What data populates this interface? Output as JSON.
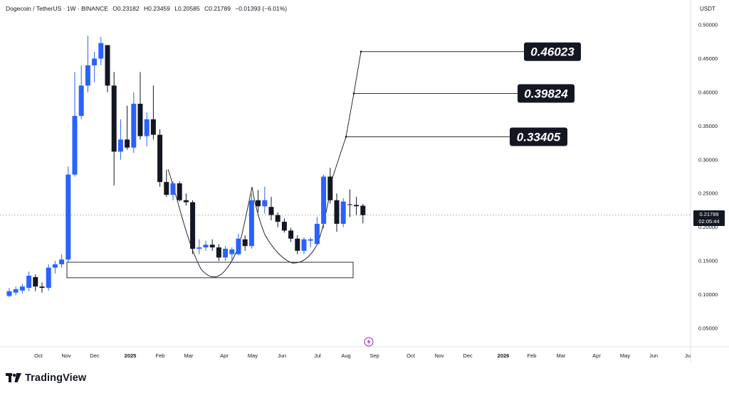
{
  "header": {
    "symbol": "Dogecoin / TetherUS · 1W · BINANCE",
    "open": "O0.23182",
    "high": "H0.23459",
    "low": "L0.20585",
    "close": "C0.21789",
    "change": "−0.01393 (−6.01%)"
  },
  "currency": "USDT",
  "price_tag": {
    "price": "0.21789",
    "countdown": "02:05:44"
  },
  "brand": "TradingView",
  "colors": {
    "up": "#2962ff",
    "down": "#131722",
    "grid_dotted": "#9598a1",
    "text": "#131722",
    "lightning": "#9c27b0"
  },
  "chart_data": {
    "type": "candlestick",
    "x_labels": [
      "Oct",
      "Nov",
      "Dec",
      "2025",
      "Feb",
      "Mar",
      "Apr",
      "May",
      "Jun",
      "Jul",
      "Aug",
      "Sep",
      "Oct",
      "Nov",
      "Dec",
      "2026",
      "Feb",
      "Mar",
      "Apr",
      "May",
      "Jun",
      "Ju"
    ],
    "y_ticks": [
      "0.50000",
      "0.45000",
      "0.40000",
      "0.35000",
      "0.30000",
      "0.25000",
      "0.20000",
      "0.15000",
      "0.10000",
      "0.05000"
    ],
    "ylim": [
      0.02,
      0.52
    ],
    "candles": [
      {
        "o": 0.098,
        "h": 0.11,
        "l": 0.096,
        "c": 0.105
      },
      {
        "o": 0.103,
        "h": 0.112,
        "l": 0.099,
        "c": 0.108
      },
      {
        "o": 0.106,
        "h": 0.116,
        "l": 0.102,
        "c": 0.112
      },
      {
        "o": 0.11,
        "h": 0.134,
        "l": 0.105,
        "c": 0.128
      },
      {
        "o": 0.126,
        "h": 0.13,
        "l": 0.105,
        "c": 0.112
      },
      {
        "o": 0.112,
        "h": 0.118,
        "l": 0.103,
        "c": 0.11
      },
      {
        "o": 0.11,
        "h": 0.145,
        "l": 0.106,
        "c": 0.14
      },
      {
        "o": 0.14,
        "h": 0.15,
        "l": 0.131,
        "c": 0.145
      },
      {
        "o": 0.145,
        "h": 0.16,
        "l": 0.14,
        "c": 0.152
      },
      {
        "o": 0.152,
        "h": 0.29,
        "l": 0.148,
        "c": 0.278
      },
      {
        "o": 0.278,
        "h": 0.43,
        "l": 0.275,
        "c": 0.365
      },
      {
        "o": 0.365,
        "h": 0.44,
        "l": 0.36,
        "c": 0.41
      },
      {
        "o": 0.41,
        "h": 0.484,
        "l": 0.4,
        "c": 0.44
      },
      {
        "o": 0.44,
        "h": 0.46,
        "l": 0.415,
        "c": 0.45
      },
      {
        "o": 0.45,
        "h": 0.482,
        "l": 0.44,
        "c": 0.473
      },
      {
        "o": 0.47,
        "h": 0.47,
        "l": 0.4,
        "c": 0.41
      },
      {
        "o": 0.41,
        "h": 0.43,
        "l": 0.262,
        "c": 0.312
      },
      {
        "o": 0.312,
        "h": 0.36,
        "l": 0.3,
        "c": 0.33
      },
      {
        "o": 0.33,
        "h": 0.38,
        "l": 0.315,
        "c": 0.318
      },
      {
        "o": 0.318,
        "h": 0.4,
        "l": 0.31,
        "c": 0.383
      },
      {
        "o": 0.383,
        "h": 0.43,
        "l": 0.33,
        "c": 0.335
      },
      {
        "o": 0.335,
        "h": 0.37,
        "l": 0.32,
        "c": 0.36
      },
      {
        "o": 0.36,
        "h": 0.41,
        "l": 0.33,
        "c": 0.337
      },
      {
        "o": 0.337,
        "h": 0.345,
        "l": 0.26,
        "c": 0.267
      },
      {
        "o": 0.267,
        "h": 0.285,
        "l": 0.245,
        "c": 0.248
      },
      {
        "o": 0.248,
        "h": 0.268,
        "l": 0.24,
        "c": 0.265
      },
      {
        "o": 0.265,
        "h": 0.268,
        "l": 0.238,
        "c": 0.24
      },
      {
        "o": 0.24,
        "h": 0.25,
        "l": 0.232,
        "c": 0.237
      },
      {
        "o": 0.237,
        "h": 0.24,
        "l": 0.16,
        "c": 0.168
      },
      {
        "o": 0.168,
        "h": 0.182,
        "l": 0.16,
        "c": 0.17
      },
      {
        "o": 0.17,
        "h": 0.18,
        "l": 0.165,
        "c": 0.174
      },
      {
        "o": 0.174,
        "h": 0.182,
        "l": 0.165,
        "c": 0.17
      },
      {
        "o": 0.17,
        "h": 0.175,
        "l": 0.15,
        "c": 0.155
      },
      {
        "o": 0.155,
        "h": 0.172,
        "l": 0.15,
        "c": 0.168
      },
      {
        "o": 0.16,
        "h": 0.17,
        "l": 0.15,
        "c": 0.167
      },
      {
        "o": 0.16,
        "h": 0.19,
        "l": 0.158,
        "c": 0.183
      },
      {
        "o": 0.182,
        "h": 0.188,
        "l": 0.165,
        "c": 0.172
      },
      {
        "o": 0.172,
        "h": 0.25,
        "l": 0.168,
        "c": 0.24
      },
      {
        "o": 0.24,
        "h": 0.255,
        "l": 0.222,
        "c": 0.231
      },
      {
        "o": 0.231,
        "h": 0.26,
        "l": 0.22,
        "c": 0.24
      },
      {
        "o": 0.23,
        "h": 0.245,
        "l": 0.21,
        "c": 0.218
      },
      {
        "o": 0.218,
        "h": 0.222,
        "l": 0.2,
        "c": 0.208
      },
      {
        "o": 0.208,
        "h": 0.213,
        "l": 0.192,
        "c": 0.195
      },
      {
        "o": 0.195,
        "h": 0.199,
        "l": 0.178,
        "c": 0.183
      },
      {
        "o": 0.183,
        "h": 0.188,
        "l": 0.16,
        "c": 0.165
      },
      {
        "o": 0.165,
        "h": 0.185,
        "l": 0.16,
        "c": 0.182
      },
      {
        "o": 0.18,
        "h": 0.185,
        "l": 0.17,
        "c": 0.182
      },
      {
        "o": 0.175,
        "h": 0.215,
        "l": 0.175,
        "c": 0.205
      },
      {
        "o": 0.205,
        "h": 0.278,
        "l": 0.198,
        "c": 0.275
      },
      {
        "o": 0.275,
        "h": 0.288,
        "l": 0.235,
        "c": 0.24
      },
      {
        "o": 0.24,
        "h": 0.25,
        "l": 0.193,
        "c": 0.205
      },
      {
        "o": 0.205,
        "h": 0.243,
        "l": 0.2,
        "c": 0.238
      },
      {
        "o": 0.234,
        "h": 0.256,
        "l": 0.215,
        "c": 0.233
      },
      {
        "o": 0.233,
        "h": 0.245,
        "l": 0.218,
        "c": 0.231
      },
      {
        "o": 0.23182,
        "h": 0.23459,
        "l": 0.20585,
        "c": 0.21789
      }
    ],
    "current_price": 0.21789,
    "targets": [
      {
        "label": "0.46023",
        "value": 0.46023
      },
      {
        "label": "0.39824",
        "value": 0.39824
      },
      {
        "label": "0.33405",
        "value": 0.33405
      }
    ],
    "support_zone": {
      "low": 0.125,
      "high": 0.148
    },
    "grid": false,
    "legend": "none"
  }
}
